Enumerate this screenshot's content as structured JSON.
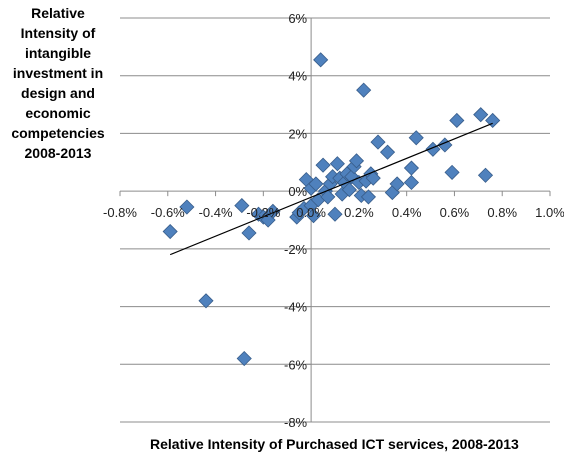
{
  "chart_data": {
    "type": "scatter",
    "title": "",
    "xlabel": "Relative Intensity of Purchased ICT services, 2008-2013",
    "ylabel": "Relative Intensity of intangible investment in design and economic competencies 2008-2013",
    "ylabel_lines": [
      "Relative",
      "Intensity of",
      "intangible",
      "investment in",
      "design and",
      "economic",
      "competencies",
      "2008-2013"
    ],
    "xlim": [
      -0.8,
      1.0
    ],
    "ylim": [
      -8,
      6
    ],
    "xticks": [
      -0.8,
      -0.6,
      -0.4,
      -0.2,
      0.0,
      0.2,
      0.4,
      0.6,
      0.8,
      1.0
    ],
    "xtick_labels": [
      "-0.8%",
      "-0.6%",
      "-0.4%",
      "-0.2%",
      "0.0%",
      "0.2%",
      "0.4%",
      "0.6%",
      "0.8%",
      "1.0%"
    ],
    "yticks": [
      6,
      4,
      2,
      0,
      -2,
      -4,
      -6,
      -8
    ],
    "ytick_labels": [
      "6%",
      "4%",
      "2%",
      "0%",
      "-2%",
      "-4%",
      "-6%",
      "-8%"
    ],
    "grid": "horizontal",
    "legend": "none",
    "marker": "diamond",
    "marker_color": "#4f81bd",
    "marker_edge_color": "#385d8a",
    "trendline": {
      "x": [
        -0.59,
        0.76
      ],
      "y": [
        -2.2,
        2.35
      ],
      "color": "#000000"
    },
    "points": [
      [
        -0.59,
        -1.4
      ],
      [
        -0.52,
        -0.55
      ],
      [
        -0.44,
        -3.8
      ],
      [
        -0.29,
        -0.5
      ],
      [
        -0.28,
        -5.8
      ],
      [
        -0.26,
        -1.45
      ],
      [
        -0.22,
        -0.8
      ],
      [
        -0.2,
        -0.9
      ],
      [
        -0.18,
        -1.0
      ],
      [
        -0.16,
        -0.7
      ],
      [
        -0.06,
        -0.9
      ],
      [
        -0.05,
        -0.75
      ],
      [
        -0.03,
        -0.6
      ],
      [
        -0.02,
        0.4
      ],
      [
        0.0,
        0.1
      ],
      [
        0.0,
        -0.5
      ],
      [
        0.01,
        -0.85
      ],
      [
        0.02,
        0.25
      ],
      [
        0.03,
        -0.3
      ],
      [
        0.04,
        4.55
      ],
      [
        0.05,
        0.9
      ],
      [
        0.06,
        0.0
      ],
      [
        0.07,
        -0.2
      ],
      [
        0.08,
        0.25
      ],
      [
        0.09,
        0.5
      ],
      [
        0.1,
        -0.8
      ],
      [
        0.11,
        0.95
      ],
      [
        0.12,
        0.45
      ],
      [
        0.13,
        -0.1
      ],
      [
        0.14,
        0.3
      ],
      [
        0.15,
        0.6
      ],
      [
        0.16,
        0.05
      ],
      [
        0.17,
        0.5
      ],
      [
        0.18,
        0.85
      ],
      [
        0.19,
        1.05
      ],
      [
        0.2,
        0.3
      ],
      [
        0.21,
        -0.15
      ],
      [
        0.22,
        3.5
      ],
      [
        0.23,
        0.35
      ],
      [
        0.24,
        -0.2
      ],
      [
        0.25,
        0.6
      ],
      [
        0.26,
        0.45
      ],
      [
        0.28,
        1.7
      ],
      [
        0.32,
        1.35
      ],
      [
        0.34,
        -0.05
      ],
      [
        0.36,
        0.25
      ],
      [
        0.42,
        0.3
      ],
      [
        0.42,
        0.8
      ],
      [
        0.44,
        1.85
      ],
      [
        0.51,
        1.45
      ],
      [
        0.56,
        1.6
      ],
      [
        0.59,
        0.65
      ],
      [
        0.61,
        2.45
      ],
      [
        0.71,
        2.65
      ],
      [
        0.73,
        0.55
      ],
      [
        0.76,
        2.45
      ]
    ]
  }
}
